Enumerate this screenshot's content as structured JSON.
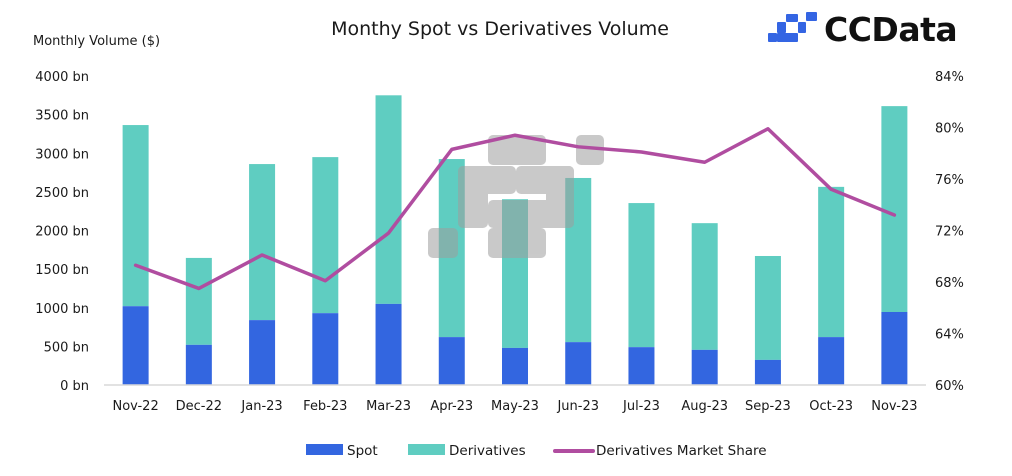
{
  "brand": {
    "name": "CCData",
    "logo_icon": "ccdata-pixel-logo-icon",
    "logo_color": "#3465E3"
  },
  "colors": {
    "spot": "#3366E0",
    "derivatives": "#5FCDC1",
    "market_share": "#B04DA0",
    "axis_line": "#D9D9D9",
    "watermark": "#9E9E9E"
  },
  "chart_data": {
    "type": "bar",
    "stacked": true,
    "title": "Monthy Spot vs Derivatives Volume",
    "xlabel": "",
    "ylabel": "Monthly Volume ($)",
    "y2label": "",
    "ylim": [
      0,
      4000
    ],
    "y2lim": [
      60,
      84
    ],
    "grid": false,
    "legend_position": "bottom",
    "categories": [
      "Nov-22",
      "Dec-22",
      "Jan-23",
      "Feb-23",
      "Mar-23",
      "Apr-23",
      "May-23",
      "Jun-23",
      "Jul-23",
      "Aug-23",
      "Sep-23",
      "Oct-23",
      "Nov-23"
    ],
    "y_ticks": [
      "0 bn",
      "500 bn",
      "1000 bn",
      "1500 bn",
      "2000 bn",
      "2500 bn",
      "3000 bn",
      "3500 bn",
      "4000 bn"
    ],
    "y_tick_values": [
      0,
      500,
      1000,
      1500,
      2000,
      2500,
      3000,
      3500,
      4000
    ],
    "y2_ticks": [
      "60%",
      "64%",
      "68%",
      "72%",
      "76%",
      "80%",
      "84%"
    ],
    "y2_tick_values": [
      60,
      64,
      68,
      72,
      76,
      80,
      84
    ],
    "series": [
      {
        "name": "Spot",
        "type": "bar",
        "axis": "left",
        "unit": "bn USD",
        "values": [
          1020,
          520,
          840,
          930,
          1050,
          620,
          480,
          555,
          490,
          455,
          325,
          620,
          945
        ]
      },
      {
        "name": "Derivatives",
        "type": "bar",
        "axis": "left",
        "unit": "bn USD",
        "values": [
          2345,
          1125,
          2020,
          2020,
          2700,
          2305,
          1925,
          2125,
          1865,
          1640,
          1345,
          1945,
          2665
        ]
      },
      {
        "name": "Derivatives Market Share",
        "type": "line",
        "axis": "right",
        "unit": "%",
        "values": [
          69.3,
          67.5,
          70.1,
          68.1,
          71.8,
          78.3,
          79.4,
          78.5,
          78.1,
          77.3,
          79.9,
          75.2,
          73.2
        ]
      }
    ],
    "legend": [
      "Spot",
      "Derivatives",
      "Derivatives Market Share"
    ]
  }
}
